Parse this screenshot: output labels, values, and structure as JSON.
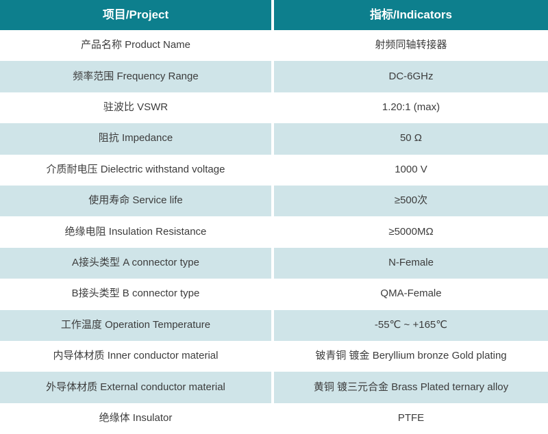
{
  "colors": {
    "header_bg": "#0d7f8d",
    "header_text": "#ffffff",
    "row_alt_bg": "#cfe4e8",
    "row_bg": "#ffffff",
    "body_text": "#3c3c3c"
  },
  "table": {
    "columns": [
      {
        "label": "项目/Project"
      },
      {
        "label": "指标/Indicators"
      }
    ],
    "rows": [
      {
        "project": "产品名称 Product Name",
        "indicator": "射频同轴转接器"
      },
      {
        "project": "频率范围 Frequency Range",
        "indicator": "DC-6GHz"
      },
      {
        "project": "驻波比 VSWR",
        "indicator": "1.20:1 (max)"
      },
      {
        "project": "阻抗 Impedance",
        "indicator": "50 Ω"
      },
      {
        "project": "介质耐电压 Dielectric withstand voltage",
        "indicator": "1000 V"
      },
      {
        "project": "使用寿命 Service life",
        "indicator": "≥500次"
      },
      {
        "project": "绝缘电阻 Insulation Resistance",
        "indicator": "≥5000MΩ"
      },
      {
        "project": "A接头类型 A connector type",
        "indicator": "N-Female"
      },
      {
        "project": "B接头类型 B connector type",
        "indicator": "QMA-Female"
      },
      {
        "project": "工作温度 Operation Temperature",
        "indicator": "-55℃ ~ +165℃"
      },
      {
        "project": "内导体材质 Inner conductor material",
        "indicator": "铍青铜 镀金 Beryllium bronze Gold plating"
      },
      {
        "project": "外导体材质 External conductor material",
        "indicator": "黄铜 镀三元合金 Brass Plated ternary alloy"
      },
      {
        "project": "绝缘体 Insulator",
        "indicator": "PTFE"
      }
    ]
  }
}
